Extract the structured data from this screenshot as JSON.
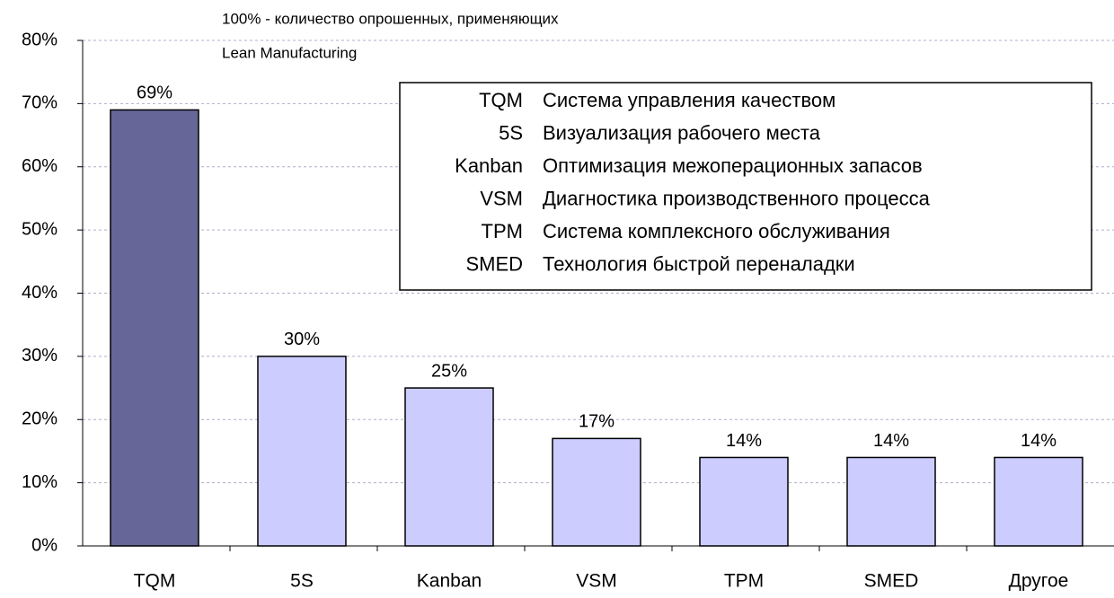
{
  "chart_data": {
    "type": "bar",
    "annotation": [
      "100% -  количество опрошенных, применяющих",
      "Lean Manufacturing"
    ],
    "categories": [
      "TQM",
      "5S",
      "Kanban",
      "VSM",
      "TPM",
      "SMED",
      "Другое"
    ],
    "values": [
      69,
      30,
      25,
      17,
      14,
      14,
      14
    ],
    "value_labels": [
      "69%",
      "30%",
      "25%",
      "17%",
      "14%",
      "14%",
      "14%"
    ],
    "colors": [
      "#666699",
      "#ccccff",
      "#ccccff",
      "#ccccff",
      "#ccccff",
      "#ccccff",
      "#ccccff"
    ],
    "ylim": [
      0,
      80
    ],
    "yticks": [
      {
        "value": 0,
        "label": "0%"
      },
      {
        "value": 10,
        "label": "10%"
      },
      {
        "value": 20,
        "label": "20%"
      },
      {
        "value": 30,
        "label": "30%"
      },
      {
        "value": 40,
        "label": "40%"
      },
      {
        "value": 50,
        "label": "50%"
      },
      {
        "value": 60,
        "label": "60%"
      },
      {
        "value": 70,
        "label": "70%"
      },
      {
        "value": 80,
        "label": "80%"
      }
    ],
    "grid": true,
    "legend_table": [
      {
        "abbr": "TQM",
        "desc": "Система управления качеством"
      },
      {
        "abbr": "5S",
        "desc": "Визуализация рабочего места"
      },
      {
        "abbr": "Kanban",
        "desc": "Оптимизация межоперационных запасов"
      },
      {
        "abbr": "VSM",
        "desc": "Диагностика производственного процесса"
      },
      {
        "abbr": "TPM",
        "desc": "Система комплексного обслуживания"
      },
      {
        "abbr": "SMED",
        "desc": "Технология быстрой переналадки"
      }
    ]
  }
}
